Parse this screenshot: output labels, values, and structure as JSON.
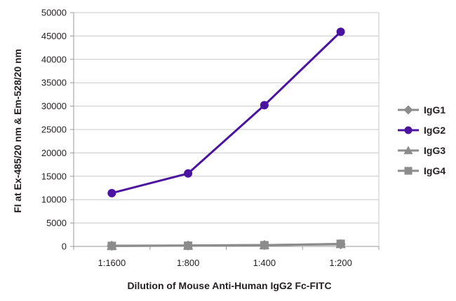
{
  "chart_data": {
    "type": "line",
    "title": "",
    "xlabel": "Dilution of Mouse Anti-Human IgG2 Fc-FITC",
    "ylabel": "FI at Ex-485/20 nm & Em-528/20 nm",
    "categories": [
      "1:1600",
      "1:800",
      "1:400",
      "1:200"
    ],
    "ylim": [
      0,
      50000
    ],
    "yticks": [
      "0",
      "5000",
      "10000",
      "15000",
      "20000",
      "25000",
      "30000",
      "35000",
      "40000",
      "45000",
      "50000"
    ],
    "grid": true,
    "legend_position": "right",
    "series": [
      {
        "name": "IgG1",
        "color": "#8c8c8c",
        "marker": "diamond",
        "values": [
          150,
          200,
          300,
          450
        ]
      },
      {
        "name": "IgG2",
        "color": "#4a14a0",
        "marker": "circle",
        "values": [
          11400,
          15600,
          30200,
          45900
        ]
      },
      {
        "name": "IgG3",
        "color": "#8c8c8c",
        "marker": "triangle",
        "values": [
          120,
          180,
          280,
          500
        ]
      },
      {
        "name": "IgG4",
        "color": "#8c8c8c",
        "marker": "square",
        "values": [
          100,
          150,
          250,
          550
        ]
      }
    ]
  }
}
